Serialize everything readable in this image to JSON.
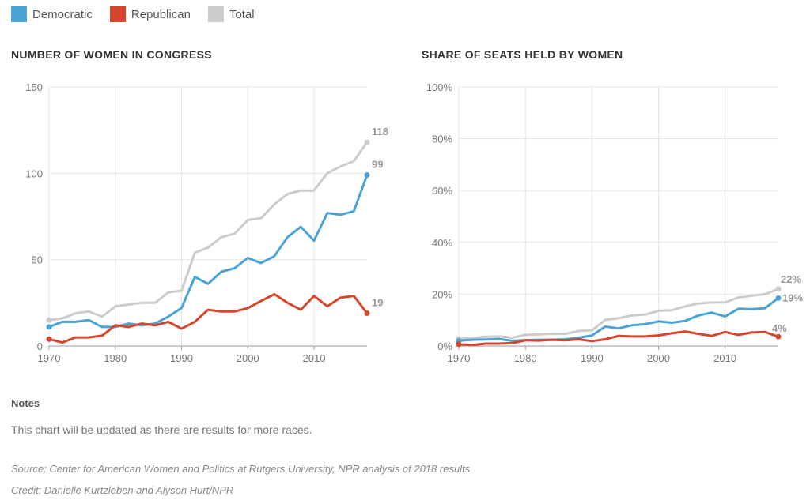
{
  "legend": [
    {
      "label": "Democratic",
      "color": "#4aa3d6"
    },
    {
      "label": "Republican",
      "color": "#d6452d"
    },
    {
      "label": "Total",
      "color": "#cccccc"
    }
  ],
  "chart_data": [
    {
      "type": "line",
      "title": "NUMBER OF WOMEN IN CONGRESS",
      "xlabel": "",
      "ylabel": "",
      "xlim": [
        1970,
        2018
      ],
      "ylim": [
        0,
        150
      ],
      "x_ticks": [
        "1970",
        "1980",
        "1990",
        "2000",
        "2010"
      ],
      "y_ticks": [
        "0",
        "50",
        "100",
        "150"
      ],
      "grid": true,
      "x": [
        1970,
        1972,
        1974,
        1976,
        1978,
        1980,
        1982,
        1984,
        1986,
        1988,
        1990,
        1992,
        1994,
        1996,
        1998,
        2000,
        2002,
        2004,
        2006,
        2008,
        2010,
        2012,
        2014,
        2016,
        2018
      ],
      "series": [
        {
          "name": "Total",
          "color": "#cccccc",
          "end_label": "118",
          "values": [
            15,
            16,
            19,
            20,
            17,
            23,
            24,
            25,
            25,
            31,
            32,
            54,
            57,
            63,
            65,
            73,
            74,
            82,
            88,
            90,
            90,
            100,
            104,
            107,
            118
          ]
        },
        {
          "name": "Democratic",
          "color": "#4aa3d6",
          "end_label": "99",
          "values": [
            11,
            14,
            14,
            15,
            11,
            11,
            13,
            12,
            13,
            17,
            22,
            40,
            36,
            43,
            45,
            51,
            48,
            52,
            63,
            69,
            61,
            77,
            76,
            78,
            99
          ]
        },
        {
          "name": "Republican",
          "color": "#d6452d",
          "end_label": "19",
          "values": [
            4,
            2,
            5,
            5,
            6,
            12,
            11,
            13,
            12,
            14,
            10,
            14,
            21,
            20,
            20,
            22,
            26,
            30,
            25,
            21,
            29,
            23,
            28,
            29,
            19
          ]
        }
      ]
    },
    {
      "type": "line",
      "title": "SHARE OF SEATS HELD BY WOMEN",
      "xlabel": "",
      "ylabel": "",
      "xlim": [
        1970,
        2018
      ],
      "ylim": [
        0,
        100
      ],
      "x_ticks": [
        "1970",
        "1980",
        "1990",
        "2000",
        "2010"
      ],
      "y_ticks": [
        "0%",
        "20%",
        "40%",
        "60%",
        "80%",
        "100%"
      ],
      "grid": true,
      "x": [
        1970,
        1972,
        1974,
        1976,
        1978,
        1980,
        1982,
        1984,
        1986,
        1988,
        1990,
        1992,
        1994,
        1996,
        1998,
        2000,
        2002,
        2004,
        2006,
        2008,
        2010,
        2012,
        2014,
        2016,
        2018
      ],
      "series": [
        {
          "name": "Total",
          "color": "#cccccc",
          "end_label": "22%",
          "values": [
            2.8,
            3.0,
            3.6,
            3.7,
            3.2,
            4.3,
            4.5,
            4.7,
            4.7,
            5.8,
            6.0,
            10.1,
            10.7,
            11.8,
            12.1,
            13.6,
            13.8,
            15.3,
            16.4,
            16.8,
            16.8,
            18.7,
            19.4,
            20.0,
            22.0
          ]
        },
        {
          "name": "Democratic",
          "color": "#4aa3d6",
          "end_label": "19%",
          "values": [
            2.0,
            2.4,
            2.5,
            2.7,
            2.0,
            2.3,
            2.4,
            2.4,
            2.6,
            3.2,
            4.1,
            7.5,
            6.8,
            8.0,
            8.4,
            9.5,
            9.0,
            9.7,
            11.8,
            12.9,
            11.4,
            14.4,
            14.2,
            14.6,
            18.5
          ]
        },
        {
          "name": "Republican",
          "color": "#d6452d",
          "end_label": "4%",
          "values": [
            0.7,
            0.4,
            0.9,
            0.9,
            1.1,
            2.2,
            2.1,
            2.4,
            2.2,
            2.6,
            1.9,
            2.6,
            3.9,
            3.7,
            3.7,
            4.1,
            4.9,
            5.6,
            4.7,
            3.9,
            5.4,
            4.3,
            5.2,
            5.4,
            3.6
          ]
        }
      ]
    }
  ],
  "notes": {
    "heading": "Notes",
    "text": "This chart will be updated as there are results for more races."
  },
  "source": "Source: Center for American Women and Politics at Rutgers University, NPR analysis of 2018 results",
  "credit": "Credit: Danielle Kurtzleben and Alyson Hurt/NPR"
}
